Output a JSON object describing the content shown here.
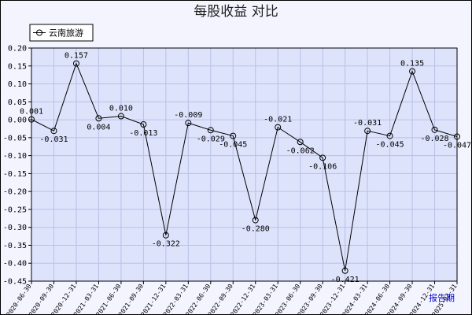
{
  "chart_data": {
    "type": "line",
    "title": "每股收益  对比",
    "xlabel": "",
    "ylabel": "",
    "ylim": [
      -0.45,
      0.2
    ],
    "yticks": [
      0.2,
      0.15,
      0.1,
      0.05,
      0.0,
      -0.05,
      -0.1,
      -0.15,
      -0.2,
      -0.25,
      -0.3,
      -0.35,
      -0.4,
      -0.45
    ],
    "grid": true,
    "legend_placement": "top-left",
    "corner_label": "报告期",
    "categories": [
      "2020-06-30",
      "2020-09-30",
      "2020-12-31",
      "2021-03-31",
      "2021-06-30",
      "2021-09-30",
      "2021-12-31",
      "2022-03-31",
      "2022-06-30",
      "2022-09-30",
      "2022-12-31",
      "2023-03-31",
      "2023-06-30",
      "2023-09-30",
      "2023-12-31",
      "2024-03-31",
      "2024-06-30",
      "2024-09-30",
      "2024-12-31",
      "2025-03-31"
    ],
    "series": [
      {
        "name": "云南旅游",
        "values": [
          0.001,
          -0.031,
          0.157,
          0.004,
          0.01,
          -0.013,
          -0.322,
          -0.009,
          -0.029,
          -0.045,
          -0.28,
          -0.021,
          -0.062,
          -0.106,
          -0.421,
          -0.031,
          -0.045,
          0.135,
          -0.028,
          -0.047
        ],
        "labels": [
          "0.001",
          "-0.031",
          "0.157",
          "0.004",
          "0.010",
          "-0.013",
          "-0.322",
          "-0.009",
          "-0.029",
          "-0.045",
          "-0.280",
          "-0.021",
          "-0.062",
          "-0.106",
          "-0.421",
          "-0.031",
          "-0.045",
          "0.135",
          "-0.028",
          "-0.047"
        ]
      }
    ]
  },
  "colors": {
    "plot_bg": "#dde3fb",
    "grid": "#b8c0e8",
    "line": "#000000",
    "frame_bg": "#f4f4ff"
  }
}
